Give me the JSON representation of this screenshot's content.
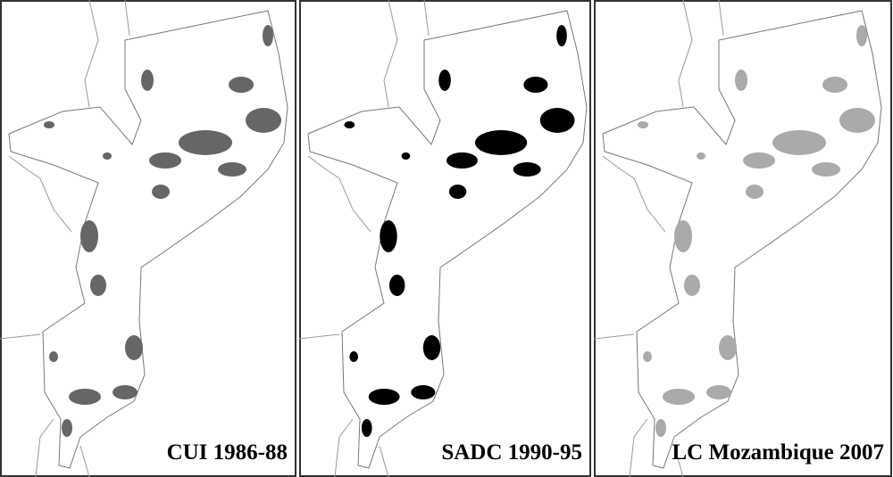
{
  "panels": [
    {
      "label": "CUI 1986-88"
    },
    {
      "label": "SADC 1990-95"
    },
    {
      "label": "LC Mozambique 2007"
    }
  ]
}
